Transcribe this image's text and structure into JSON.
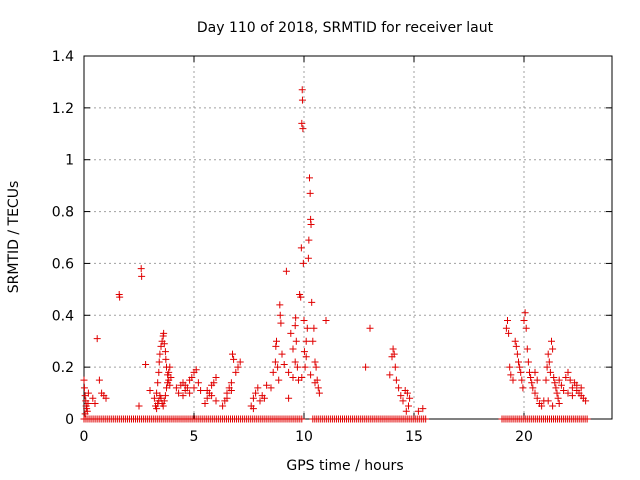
{
  "chart_data": {
    "type": "scatter",
    "title": "Day 110 of 2018, SRMTID for receiver laut",
    "xlabel": "GPS time / hours",
    "ylabel": "SRMTID / TECUs",
    "xlim": [
      0,
      24
    ],
    "ylim": [
      0,
      1.4
    ],
    "xticks": [
      0,
      5,
      10,
      15,
      20
    ],
    "xtick_labels": [
      "0",
      "5",
      "10",
      "15",
      "20"
    ],
    "yticks": [
      0,
      0.2,
      0.4,
      0.6,
      0.8,
      1.0,
      1.2,
      1.4
    ],
    "ytick_labels": [
      "0",
      "0.2",
      "0.4",
      "0.6",
      "0.8",
      "1",
      "1.2",
      "1.4"
    ],
    "grid": true,
    "marker": "+",
    "color": "#e00000",
    "series": [
      {
        "name": "SRMTID",
        "points": [
          [
            0.0,
            0.15
          ],
          [
            0.02,
            0.12
          ],
          [
            0.05,
            0.09
          ],
          [
            0.08,
            0.07
          ],
          [
            0.1,
            0.05
          ],
          [
            0.12,
            0.04
          ],
          [
            0.15,
            0.03
          ],
          [
            0.18,
            0.06
          ],
          [
            0.2,
            0.1
          ],
          [
            0.05,
            0.02
          ],
          [
            0.4,
            0.08
          ],
          [
            0.5,
            0.06
          ],
          [
            0.6,
            0.31
          ],
          [
            0.7,
            0.15
          ],
          [
            0.8,
            0.1
          ],
          [
            0.9,
            0.09
          ],
          [
            1.0,
            0.08
          ],
          [
            1.6,
            0.48
          ],
          [
            1.62,
            0.47
          ],
          [
            2.6,
            0.58
          ],
          [
            2.62,
            0.55
          ],
          [
            2.5,
            0.05
          ],
          [
            2.8,
            0.21
          ],
          [
            3.0,
            0.11
          ],
          [
            3.2,
            0.08
          ],
          [
            3.25,
            0.05
          ],
          [
            3.3,
            0.1
          ],
          [
            3.35,
            0.14
          ],
          [
            3.4,
            0.18
          ],
          [
            3.42,
            0.22
          ],
          [
            3.45,
            0.25
          ],
          [
            3.5,
            0.28
          ],
          [
            3.55,
            0.3
          ],
          [
            3.6,
            0.32
          ],
          [
            3.62,
            0.33
          ],
          [
            3.65,
            0.29
          ],
          [
            3.7,
            0.26
          ],
          [
            3.72,
            0.23
          ],
          [
            3.75,
            0.2
          ],
          [
            3.8,
            0.17
          ],
          [
            3.85,
            0.15
          ],
          [
            3.9,
            0.13
          ],
          [
            3.3,
            0.04
          ],
          [
            3.35,
            0.06
          ],
          [
            3.4,
            0.07
          ],
          [
            3.45,
            0.09
          ],
          [
            3.5,
            0.08
          ],
          [
            3.55,
            0.06
          ],
          [
            3.6,
            0.05
          ],
          [
            3.65,
            0.07
          ],
          [
            3.7,
            0.09
          ],
          [
            3.75,
            0.12
          ],
          [
            3.8,
            0.14
          ],
          [
            3.85,
            0.18
          ],
          [
            3.9,
            0.2
          ],
          [
            3.95,
            0.16
          ],
          [
            4.2,
            0.12
          ],
          [
            4.3,
            0.1
          ],
          [
            4.4,
            0.13
          ],
          [
            4.5,
            0.14
          ],
          [
            4.6,
            0.11
          ],
          [
            4.7,
            0.12
          ],
          [
            4.8,
            0.15
          ],
          [
            4.9,
            0.16
          ],
          [
            5.0,
            0.18
          ],
          [
            5.1,
            0.19
          ],
          [
            5.2,
            0.14
          ],
          [
            5.3,
            0.11
          ],
          [
            4.5,
            0.09
          ],
          [
            4.6,
            0.13
          ],
          [
            4.8,
            0.1
          ],
          [
            5.0,
            0.12
          ],
          [
            5.5,
            0.06
          ],
          [
            5.6,
            0.08
          ],
          [
            5.7,
            0.1
          ],
          [
            5.8,
            0.13
          ],
          [
            5.9,
            0.14
          ],
          [
            6.0,
            0.16
          ],
          [
            5.6,
            0.11
          ],
          [
            5.8,
            0.09
          ],
          [
            6.0,
            0.07
          ],
          [
            6.3,
            0.05
          ],
          [
            6.4,
            0.07
          ],
          [
            6.5,
            0.1
          ],
          [
            6.6,
            0.12
          ],
          [
            6.7,
            0.14
          ],
          [
            6.75,
            0.25
          ],
          [
            6.8,
            0.23
          ],
          [
            6.9,
            0.18
          ],
          [
            7.0,
            0.2
          ],
          [
            7.1,
            0.22
          ],
          [
            6.5,
            0.08
          ],
          [
            6.7,
            0.11
          ],
          [
            7.6,
            0.05
          ],
          [
            7.7,
            0.08
          ],
          [
            7.8,
            0.1
          ],
          [
            7.9,
            0.12
          ],
          [
            8.0,
            0.07
          ],
          [
            7.7,
            0.04
          ],
          [
            8.1,
            0.09
          ],
          [
            8.2,
            0.08
          ],
          [
            8.3,
            0.13
          ],
          [
            8.5,
            0.12
          ],
          [
            8.6,
            0.18
          ],
          [
            8.7,
            0.22
          ],
          [
            8.72,
            0.28
          ],
          [
            8.75,
            0.3
          ],
          [
            8.8,
            0.2
          ],
          [
            8.85,
            0.15
          ],
          [
            8.9,
            0.44
          ],
          [
            8.92,
            0.4
          ],
          [
            8.95,
            0.37
          ],
          [
            9.0,
            0.25
          ],
          [
            9.1,
            0.21
          ],
          [
            9.2,
            0.57
          ],
          [
            9.3,
            0.18
          ],
          [
            9.4,
            0.33
          ],
          [
            9.5,
            0.27
          ],
          [
            9.6,
            0.36
          ],
          [
            9.62,
            0.39
          ],
          [
            9.65,
            0.3
          ],
          [
            9.7,
            0.2
          ],
          [
            9.75,
            0.15
          ],
          [
            9.8,
            0.48
          ],
          [
            9.85,
            0.47
          ],
          [
            9.88,
            0.66
          ],
          [
            9.9,
            1.14
          ],
          [
            9.92,
            1.27
          ],
          [
            9.93,
            1.23
          ],
          [
            9.95,
            1.12
          ],
          [
            9.97,
            0.6
          ],
          [
            10.0,
            0.38
          ],
          [
            10.02,
            0.26
          ],
          [
            10.05,
            0.2
          ],
          [
            10.1,
            0.3
          ],
          [
            10.15,
            0.35
          ],
          [
            10.2,
            0.62
          ],
          [
            10.22,
            0.69
          ],
          [
            10.25,
            0.93
          ],
          [
            10.28,
            0.87
          ],
          [
            10.3,
            0.77
          ],
          [
            10.32,
            0.75
          ],
          [
            10.35,
            0.45
          ],
          [
            10.4,
            0.3
          ],
          [
            10.45,
            0.35
          ],
          [
            10.5,
            0.22
          ],
          [
            10.55,
            0.2
          ],
          [
            10.6,
            0.15
          ],
          [
            10.65,
            0.12
          ],
          [
            10.7,
            0.1
          ],
          [
            9.3,
            0.08
          ],
          [
            9.5,
            0.16
          ],
          [
            9.6,
            0.22
          ],
          [
            9.9,
            0.16
          ],
          [
            10.1,
            0.24
          ],
          [
            10.3,
            0.17
          ],
          [
            10.5,
            0.14
          ],
          [
            11.0,
            0.38
          ],
          [
            12.8,
            0.2
          ],
          [
            13.0,
            0.35
          ],
          [
            13.9,
            0.17
          ],
          [
            14.0,
            0.24
          ],
          [
            14.05,
            0.27
          ],
          [
            14.1,
            0.25
          ],
          [
            14.15,
            0.2
          ],
          [
            14.2,
            0.15
          ],
          [
            14.3,
            0.12
          ],
          [
            14.4,
            0.09
          ],
          [
            14.5,
            0.07
          ],
          [
            14.6,
            0.11
          ],
          [
            14.7,
            0.1
          ],
          [
            14.8,
            0.08
          ],
          [
            14.75,
            0.05
          ],
          [
            14.65,
            0.03
          ],
          [
            15.2,
            0.03
          ],
          [
            15.4,
            0.04
          ],
          [
            19.2,
            0.35
          ],
          [
            19.25,
            0.38
          ],
          [
            19.3,
            0.33
          ],
          [
            19.35,
            0.2
          ],
          [
            19.4,
            0.17
          ],
          [
            19.5,
            0.15
          ],
          [
            19.6,
            0.3
          ],
          [
            19.65,
            0.28
          ],
          [
            19.7,
            0.25
          ],
          [
            19.75,
            0.22
          ],
          [
            19.8,
            0.2
          ],
          [
            19.85,
            0.18
          ],
          [
            19.9,
            0.15
          ],
          [
            19.95,
            0.12
          ],
          [
            20.0,
            0.38
          ],
          [
            20.05,
            0.41
          ],
          [
            20.1,
            0.35
          ],
          [
            20.15,
            0.27
          ],
          [
            20.2,
            0.22
          ],
          [
            20.25,
            0.18
          ],
          [
            20.3,
            0.16
          ],
          [
            20.35,
            0.14
          ],
          [
            20.4,
            0.12
          ],
          [
            20.5,
            0.1
          ],
          [
            20.6,
            0.08
          ],
          [
            20.7,
            0.06
          ],
          [
            20.8,
            0.05
          ],
          [
            20.9,
            0.07
          ],
          [
            20.5,
            0.18
          ],
          [
            20.6,
            0.15
          ],
          [
            21.0,
            0.15
          ],
          [
            21.05,
            0.2
          ],
          [
            21.1,
            0.25
          ],
          [
            21.15,
            0.22
          ],
          [
            21.2,
            0.18
          ],
          [
            21.25,
            0.3
          ],
          [
            21.3,
            0.27
          ],
          [
            21.35,
            0.16
          ],
          [
            21.4,
            0.14
          ],
          [
            21.45,
            0.12
          ],
          [
            21.5,
            0.1
          ],
          [
            21.55,
            0.08
          ],
          [
            21.6,
            0.15
          ],
          [
            21.7,
            0.13
          ],
          [
            21.8,
            0.11
          ],
          [
            21.9,
            0.16
          ],
          [
            22.0,
            0.18
          ],
          [
            22.1,
            0.15
          ],
          [
            22.2,
            0.12
          ],
          [
            22.3,
            0.14
          ],
          [
            22.4,
            0.11
          ],
          [
            22.5,
            0.1
          ],
          [
            22.6,
            0.09
          ],
          [
            22.7,
            0.08
          ],
          [
            22.8,
            0.07
          ],
          [
            21.1,
            0.07
          ],
          [
            21.3,
            0.05
          ],
          [
            21.6,
            0.06
          ],
          [
            22.0,
            0.1
          ],
          [
            22.2,
            0.09
          ],
          [
            22.4,
            0.13
          ],
          [
            22.6,
            0.12
          ]
        ],
        "zero_ranges": [
          [
            0.0,
            9.9
          ],
          [
            10.4,
            15.6
          ],
          [
            19.0,
            22.9
          ]
        ]
      }
    ]
  }
}
